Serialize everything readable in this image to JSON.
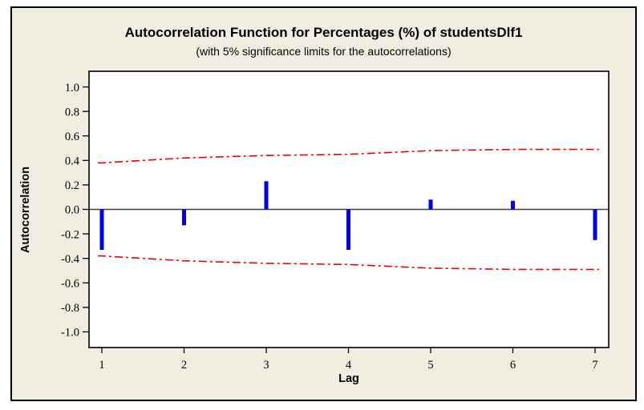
{
  "figure": {
    "title": "Autocorrelation Function for Percentages (%) of studentsDlf1",
    "subtitle": "(with 5% significance limits for the autocorrelations)"
  },
  "chart_data": {
    "type": "bar",
    "title": "Autocorrelation Function for Percentages (%) of studentsDlf1",
    "subtitle": "(with 5% significance limits for the autocorrelations)",
    "xlabel": "Lag",
    "ylabel": "Autocorrelation",
    "x": [
      1,
      2,
      3,
      4,
      5,
      6,
      7
    ],
    "series": [
      {
        "name": "autocorrelation",
        "values": [
          -0.33,
          -0.13,
          0.23,
          -0.33,
          0.08,
          0.07,
          -0.25
        ]
      },
      {
        "name": "upper 5% significance limit",
        "values": [
          0.38,
          0.42,
          0.44,
          0.45,
          0.48,
          0.49,
          0.49
        ]
      },
      {
        "name": "lower 5% significance limit",
        "values": [
          -0.38,
          -0.42,
          -0.44,
          -0.45,
          -0.48,
          -0.49,
          -0.49
        ]
      }
    ],
    "ylim": [
      -1.0,
      1.0
    ],
    "yticks": [
      1.0,
      0.8,
      0.6,
      0.4,
      0.2,
      0.0,
      -0.2,
      -0.4,
      -0.6,
      -0.8,
      -1.0
    ],
    "xticks": [
      1,
      2,
      3,
      4,
      5,
      6,
      7
    ],
    "grid": false,
    "legend_position": "none",
    "colors": {
      "bar": "#0000ee",
      "significance_limit": "#ee0000",
      "zero_line": "#404040",
      "figure_background": "#f1ede1",
      "plot_background": "#ffffff",
      "frame": "#000000"
    }
  }
}
